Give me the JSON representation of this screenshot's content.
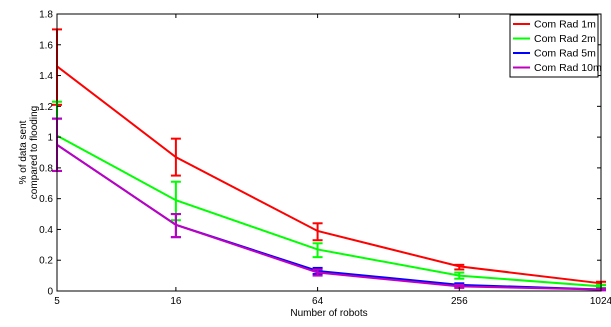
{
  "chart_data": {
    "type": "line",
    "xlabel": "Number of robots",
    "ylabel_lines": [
      "% of data sent",
      "compared to flooding"
    ],
    "x_scale": "log2",
    "categories": [
      "5",
      "16",
      "64",
      "256",
      "1024"
    ],
    "x": [
      5,
      16,
      64,
      256,
      1024
    ],
    "xlim": [
      5,
      1024
    ],
    "ylim": [
      0,
      1.8
    ],
    "yticks": [
      "0",
      "0.2",
      "0.4",
      "0.6",
      "0.8",
      "1",
      "1.2",
      "1.4",
      "1.6",
      "1.8"
    ],
    "yticks_values": [
      0,
      0.2,
      0.4,
      0.6,
      0.8,
      1.0,
      1.2,
      1.4,
      1.6,
      1.8
    ],
    "grid": false,
    "legend_position": "top-right",
    "series": [
      {
        "name": "Com Rad 1m",
        "color": "#ff0000",
        "values": [
          1.46,
          0.87,
          0.39,
          0.16,
          0.05
        ],
        "err_low": [
          1.21,
          0.75,
          0.33,
          0.14,
          0.04
        ],
        "err_high": [
          1.7,
          0.99,
          0.44,
          0.17,
          0.06
        ]
      },
      {
        "name": "Com Rad 2m",
        "color": "#00ff00",
        "values": [
          1.01,
          0.59,
          0.27,
          0.1,
          0.03
        ],
        "err_low": [
          0.78,
          0.46,
          0.22,
          0.08,
          0.02
        ],
        "err_high": [
          1.23,
          0.71,
          0.31,
          0.12,
          0.04
        ]
      },
      {
        "name": "Com Rad 5m",
        "color": "#0000ff",
        "values": [
          0.95,
          0.43,
          0.13,
          0.04,
          0.01
        ],
        "err_low": [
          0.78,
          0.35,
          0.11,
          0.03,
          0.005
        ],
        "err_high": [
          1.12,
          0.5,
          0.15,
          0.05,
          0.015
        ]
      },
      {
        "name": "Com Rad 10m",
        "color": "#bf00bf",
        "values": [
          0.95,
          0.43,
          0.12,
          0.03,
          0.01
        ],
        "err_low": [
          0.78,
          0.35,
          0.1,
          0.02,
          0.005
        ],
        "err_high": [
          1.12,
          0.5,
          0.14,
          0.04,
          0.015
        ]
      }
    ]
  }
}
